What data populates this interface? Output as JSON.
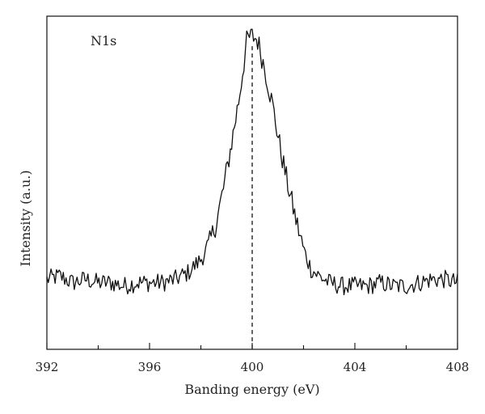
{
  "chart_data": {
    "type": "line",
    "title": "",
    "xlabel": "Banding energy (eV)",
    "ylabel": "Intensity (a.u.)",
    "xlim": [
      392,
      408
    ],
    "ylim": [
      0,
      1
    ],
    "x_ticks": [
      392,
      396,
      400,
      404,
      408
    ],
    "x_tick_labels": [
      "392",
      "396",
      "400",
      "404",
      "408"
    ],
    "y_ticks_shown": false,
    "grid": false,
    "legend": "none",
    "annotations": [
      {
        "text": "N1s"
      }
    ],
    "reference_line": {
      "x": 400,
      "style": "dashed"
    },
    "series": [
      {
        "x": [
          392,
          392.5,
          393,
          393.5,
          394,
          394.5,
          395,
          395.5,
          396,
          396.5,
          397,
          397.5,
          398,
          398.3,
          398.6,
          398.9,
          399.2,
          399.5,
          399.8,
          400,
          400.2,
          400.5,
          400.8,
          401.1,
          401.4,
          401.7,
          402,
          402.3,
          402.6,
          403,
          403.5,
          404,
          404.5,
          405,
          405.5,
          406,
          406.5,
          407,
          407.5,
          408
        ],
        "y": [
          0.21,
          0.22,
          0.2,
          0.21,
          0.2,
          0.2,
          0.19,
          0.2,
          0.2,
          0.2,
          0.21,
          0.23,
          0.27,
          0.31,
          0.38,
          0.49,
          0.62,
          0.76,
          0.93,
          0.94,
          0.93,
          0.84,
          0.73,
          0.6,
          0.49,
          0.39,
          0.3,
          0.24,
          0.22,
          0.2,
          0.19,
          0.19,
          0.19,
          0.2,
          0.19,
          0.19,
          0.2,
          0.21,
          0.21,
          0.2
        ]
      }
    ]
  },
  "colors": {
    "line": "#111111",
    "axis": "#111111",
    "dashed": "#111111"
  }
}
